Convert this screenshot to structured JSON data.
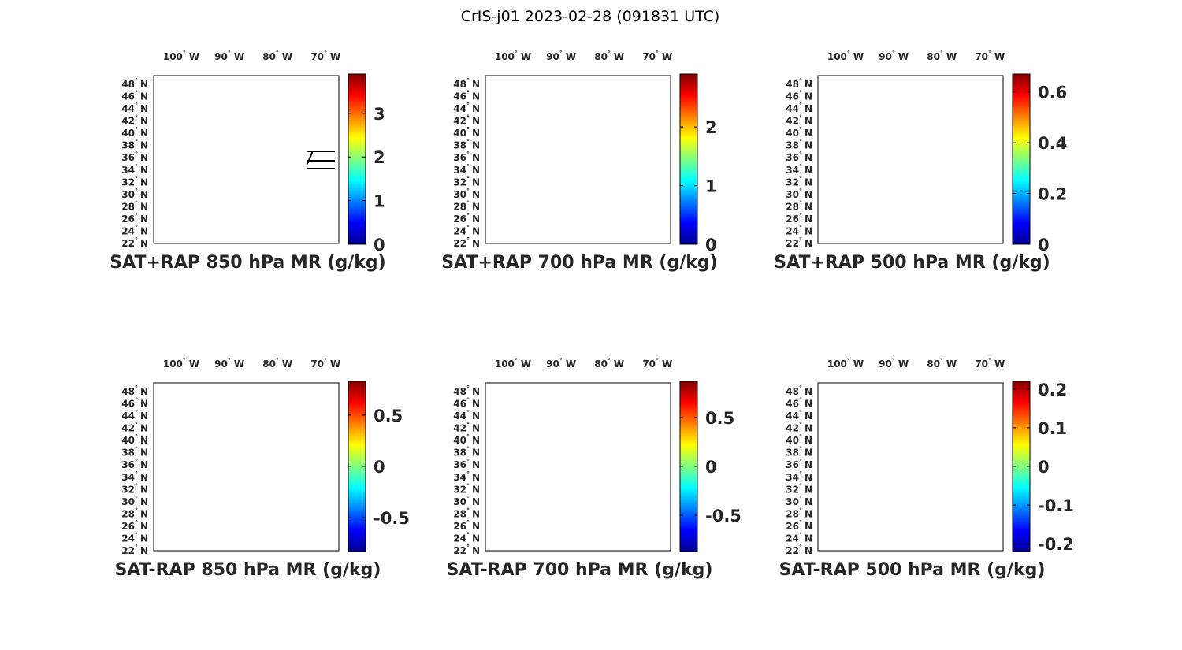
{
  "figure_title": "CrIS-j01 2023-02-28 (091831 UTC)",
  "lon_ticks": [
    "100",
    "90",
    "80",
    "70"
  ],
  "lon_hemisphere": "W",
  "lat_ticks": [
    "48",
    "46",
    "44",
    "42",
    "40",
    "38",
    "36",
    "34",
    "32",
    "30",
    "28",
    "26",
    "24",
    "22"
  ],
  "lat_hemisphere": "N",
  "colormap": "jet",
  "colors": {
    "jet": [
      "#00008f",
      "#0000ff",
      "#0080ff",
      "#00ffff",
      "#80ff80",
      "#ffff00",
      "#ff8000",
      "#ff0000",
      "#800000"
    ],
    "outline": "#000000"
  },
  "panels": [
    {
      "title": "SAT+RAP 850 hPa MR (g/kg)",
      "colorbar": {
        "min": 0,
        "max": 3.9,
        "ticks": [
          "0",
          "1",
          "2",
          "3"
        ],
        "tick_values": [
          0,
          1,
          2,
          3
        ]
      }
    },
    {
      "title": "SAT+RAP 700 hPa MR (g/kg)",
      "colorbar": {
        "min": 0,
        "max": 2.9,
        "ticks": [
          "0",
          "1",
          "2"
        ],
        "tick_values": [
          0,
          1,
          2
        ]
      }
    },
    {
      "title": "SAT+RAP 500 hPa MR (g/kg)",
      "colorbar": {
        "min": 0,
        "max": 0.67,
        "ticks": [
          "0",
          "0.2",
          "0.4",
          "0.6"
        ],
        "tick_values": [
          0,
          0.2,
          0.4,
          0.6
        ]
      }
    },
    {
      "title": "SAT-RAP 850 hPa MR (g/kg)",
      "colorbar": {
        "min": -0.83,
        "max": 0.83,
        "ticks": [
          "-0.5",
          "0",
          "0.5"
        ],
        "tick_values": [
          -0.5,
          0,
          0.5
        ]
      }
    },
    {
      "title": "SAT-RAP 700 hPa MR (g/kg)",
      "colorbar": {
        "min": -0.87,
        "max": 0.87,
        "ticks": [
          "-0.5",
          "0",
          "0.5"
        ],
        "tick_values": [
          -0.5,
          0,
          0.5
        ]
      }
    },
    {
      "title": "SAT-RAP 500 hPa MR (g/kg)",
      "colorbar": {
        "min": -0.22,
        "max": 0.22,
        "ticks": [
          "-0.2",
          "-0.1",
          "0",
          "0.1",
          "0.2"
        ],
        "tick_values": [
          -0.2,
          -0.1,
          0,
          0.1,
          0.2
        ]
      }
    }
  ]
}
